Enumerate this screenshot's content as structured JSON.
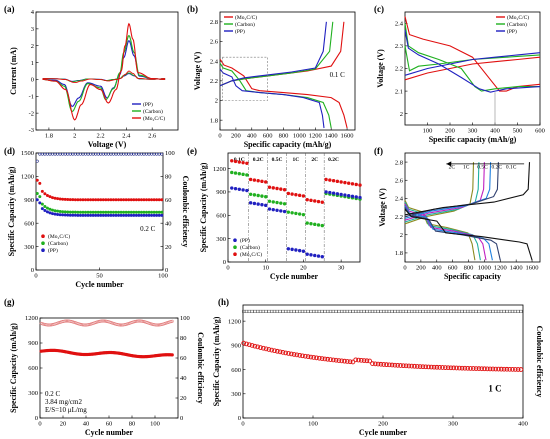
{
  "chart_data": [
    {
      "id": "a",
      "type": "line",
      "panel_label": "(a)",
      "xlabel": "Voltage (V)",
      "ylabel": "Current (mA)",
      "xlim": [
        1.7,
        2.8
      ],
      "ylim": [
        -3,
        4
      ],
      "xticks": [
        1.8,
        2.0,
        2.2,
        2.4,
        2.6
      ],
      "yticks": [
        -3,
        -2,
        -1,
        0,
        1,
        2,
        3,
        4
      ],
      "legend": {
        "position": "bottom-right",
        "entries": [
          "(PP)",
          "(Carbon)",
          "(Mo₂C/C)"
        ]
      },
      "series": [
        {
          "name": "(PP)",
          "color": "#2020c0",
          "x": [
            1.75,
            1.85,
            1.92,
            1.98,
            2.03,
            2.1,
            2.2,
            2.25,
            2.3,
            2.35,
            2.38,
            2.42,
            2.46,
            2.5,
            2.6,
            2.7
          ],
          "y": [
            0,
            -0.05,
            -0.3,
            -1.6,
            -1.1,
            -0.2,
            -0.4,
            -1.1,
            -0.5,
            0.3,
            1.3,
            2.3,
            1.4,
            0.2,
            0.05,
            0
          ]
        },
        {
          "name": "(Carbon)",
          "color": "#20b020",
          "x": [
            1.75,
            1.85,
            1.92,
            1.98,
            2.03,
            2.1,
            2.2,
            2.24,
            2.3,
            2.35,
            2.38,
            2.42,
            2.46,
            2.5,
            2.6,
            2.7
          ],
          "y": [
            0,
            -0.1,
            -0.4,
            -1.9,
            -1.3,
            -0.25,
            -0.5,
            -1.2,
            -0.55,
            0.4,
            1.6,
            2.6,
            1.6,
            0.25,
            0.05,
            0
          ]
        },
        {
          "name": "(Mo₂C/C)",
          "color": "#e01010",
          "x": [
            1.75,
            1.85,
            1.93,
            2.0,
            2.05,
            2.12,
            2.2,
            2.26,
            2.32,
            2.36,
            2.39,
            2.42,
            2.45,
            2.49,
            2.6,
            2.7
          ],
          "y": [
            0,
            -0.1,
            -0.6,
            -2.4,
            -1.5,
            -0.3,
            -0.6,
            -1.4,
            -0.6,
            0.5,
            2.0,
            3.3,
            2.4,
            0.4,
            0.05,
            0
          ]
        }
      ]
    },
    {
      "id": "b",
      "type": "line",
      "panel_label": "(b)",
      "xlabel": "Specific capacity (mAh/g)",
      "ylabel": "Voltage (V)",
      "xlim": [
        0,
        1700
      ],
      "ylim": [
        1.7,
        2.9
      ],
      "xticks": [
        0,
        200,
        400,
        600,
        800,
        1000,
        1200,
        1400,
        1600
      ],
      "yticks": [
        1.8,
        2.0,
        2.2,
        2.4,
        2.6,
        2.8
      ],
      "legend": {
        "position": "top-left",
        "entries": [
          "(Mo₂C/C)",
          "(Carbon)",
          "(PP)"
        ]
      },
      "annotation": "0.1 C",
      "series": [
        {
          "name": "(Mo₂C/C)",
          "color": "#e01010",
          "discharge": {
            "x": [
              0,
              50,
              150,
              300,
              400,
              500,
              800,
              1100,
              1400,
              1500,
              1560,
              1600
            ],
            "y": [
              2.42,
              2.36,
              2.33,
              2.25,
              2.12,
              2.1,
              2.08,
              2.06,
              2.03,
              1.98,
              1.85,
              1.72
            ]
          },
          "charge": {
            "x": [
              0,
              150,
              300,
              500,
              800,
              1100,
              1400,
              1520,
              1560
            ],
            "y": [
              2.15,
              2.2,
              2.22,
              2.24,
              2.27,
              2.3,
              2.35,
              2.5,
              2.8
            ]
          }
        },
        {
          "name": "(Carbon)",
          "color": "#20b020",
          "discharge": {
            "x": [
              0,
              40,
              150,
              250,
              330,
              500,
              800,
              1100,
              1300,
              1370,
              1400
            ],
            "y": [
              2.38,
              2.33,
              2.3,
              2.2,
              2.1,
              2.08,
              2.06,
              2.03,
              1.98,
              1.85,
              1.72
            ]
          },
          "charge": {
            "x": [
              0,
              150,
              300,
              600,
              900,
              1200,
              1380,
              1420
            ],
            "y": [
              2.15,
              2.2,
              2.22,
              2.25,
              2.28,
              2.32,
              2.5,
              2.8
            ]
          }
        },
        {
          "name": "(PP)",
          "color": "#2020c0",
          "discharge": {
            "x": [
              0,
              40,
              150,
              200,
              280,
              500,
              800,
              1050,
              1250,
              1290,
              1310
            ],
            "y": [
              2.32,
              2.28,
              2.24,
              2.15,
              2.1,
              2.08,
              2.06,
              2.03,
              1.98,
              1.85,
              1.72
            ]
          },
          "charge": {
            "x": [
              0,
              150,
              300,
              600,
              900,
              1200,
              1300,
              1340
            ],
            "y": [
              2.15,
              2.2,
              2.23,
              2.26,
              2.29,
              2.33,
              2.5,
              2.8
            ]
          }
        }
      ]
    },
    {
      "id": "c",
      "type": "line",
      "panel_label": "(c)",
      "xlabel": "Specific capacity (mAh/g)",
      "ylabel": "Voltage (V)",
      "xlim": [
        0,
        600
      ],
      "ylim": [
        1.95,
        2.45
      ],
      "xticks": [
        100,
        200,
        300,
        400,
        500,
        600
      ],
      "yticks": [
        2.0,
        2.1,
        2.2,
        2.3,
        2.4
      ],
      "legend": {
        "position": "top-right",
        "entries": [
          "(Mo₂C/C)",
          "(Carbon)",
          "(PP)"
        ]
      },
      "series": [
        {
          "name": "(Mo₂C/C)",
          "color": "#e01010",
          "discharge": {
            "x": [
              0,
              20,
              80,
              200,
              300,
              380,
              420,
              450,
              500,
              600
            ],
            "y": [
              2.43,
              2.35,
              2.33,
              2.3,
              2.25,
              2.15,
              2.1,
              2.1,
              2.12,
              2.13
            ]
          },
          "charge": {
            "x": [
              0,
              100,
              200,
              300,
              400,
              500,
              600
            ],
            "y": [
              2.15,
              2.18,
              2.2,
              2.22,
              2.23,
              2.24,
              2.25
            ]
          }
        },
        {
          "name": "(Carbon)",
          "color": "#20b020",
          "discharge": {
            "x": [
              0,
              15,
              60,
              150,
              250,
              310,
              340,
              400,
              500,
              600
            ],
            "y": [
              2.4,
              2.3,
              2.27,
              2.24,
              2.2,
              2.12,
              2.1,
              2.11,
              2.12,
              2.12
            ]
          },
          "charge": {
            "x": [
              0,
              20,
              60,
              150,
              300,
              450,
              600
            ],
            "y": [
              2.3,
              2.19,
              2.21,
              2.22,
              2.24,
              2.25,
              2.26
            ]
          }
        },
        {
          "name": "(PP)",
          "color": "#2020c0",
          "discharge": {
            "x": [
              0,
              15,
              60,
              150,
              250,
              330,
              380,
              400,
              450,
              600
            ],
            "y": [
              2.37,
              2.29,
              2.26,
              2.22,
              2.16,
              2.11,
              2.095,
              2.1,
              2.11,
              2.12
            ]
          },
          "charge": {
            "x": [
              0,
              100,
              200,
              300,
              400,
              500,
              600
            ],
            "y": [
              2.17,
              2.2,
              2.22,
              2.24,
              2.25,
              2.26,
              2.27
            ]
          }
        }
      ]
    },
    {
      "id": "d",
      "type": "scatter",
      "panel_label": "(d)",
      "xlabel": "Cycle number",
      "ylabel": "Specific Capacity (mAh/g)",
      "y2label": "Coulombic efficiency",
      "xlim": [
        0,
        100
      ],
      "ylim": [
        0,
        1500
      ],
      "y2lim": [
        0,
        100
      ],
      "xticks": [
        0,
        50,
        100
      ],
      "yticks": [
        0,
        300,
        600,
        900,
        1200,
        1500
      ],
      "y2ticks": [
        0,
        20,
        40,
        60,
        80,
        100
      ],
      "legend": {
        "position": "bottom-left",
        "entries": [
          "(Mo₂C/C)",
          "(Carbon)",
          "(PP)"
        ]
      },
      "annotation": "0.2 C",
      "series": [
        {
          "name": "(Mo₂C/C)",
          "color": "#e01010",
          "start": 1150,
          "end": 900
        },
        {
          "name": "(Carbon)",
          "color": "#20b020",
          "start": 980,
          "end": 740
        },
        {
          "name": "(PP)",
          "color": "#2020c0",
          "start": 900,
          "end": 700
        }
      ]
    },
    {
      "id": "e",
      "type": "scatter",
      "panel_label": "(e)",
      "xlabel": "Cycle number",
      "ylabel": "Specific Capacity (mAh/g)",
      "xlim": [
        0,
        35
      ],
      "ylim": [
        0,
        1400
      ],
      "xticks": [
        0,
        10,
        20,
        30
      ],
      "yticks": [
        0,
        300,
        600,
        900,
        1200
      ],
      "rates": [
        "0.1C",
        "0.2C",
        "0.5C",
        "1C",
        "2C",
        "0.2C"
      ],
      "legend": {
        "position": "bottom-left",
        "entries": [
          "(PP)",
          "(Carbon)",
          "(Mo₂C/C)"
        ]
      },
      "series": [
        {
          "name": "(Mo₂C/C)",
          "color": "#e01010",
          "levels": [
            1300,
            1060,
            960,
            880,
            800,
            1060
          ]
        },
        {
          "name": "(Carbon)",
          "color": "#20b020",
          "levels": [
            1150,
            870,
            780,
            640,
            500,
            880
          ]
        },
        {
          "name": "(PP)",
          "color": "#2020c0",
          "levels": [
            950,
            760,
            680,
            170,
            100,
            900
          ]
        }
      ]
    },
    {
      "id": "f",
      "type": "line",
      "panel_label": "(f)",
      "xlabel": "Specific capacity",
      "ylabel": "Voltage (V)",
      "xlim": [
        0,
        1700
      ],
      "ylim": [
        1.7,
        2.9
      ],
      "xticks": [
        0,
        200,
        400,
        600,
        800,
        1000,
        1200,
        1400,
        1600
      ],
      "yticks": [
        1.8,
        2.0,
        2.2,
        2.4,
        2.6,
        2.8
      ],
      "arrow_labels": [
        "2C",
        "1C",
        "0.5C",
        "0.2C",
        "0.1C"
      ],
      "capacities": [
        880,
        950,
        1020,
        1100,
        1200,
        1600
      ],
      "colors": [
        "#8a8a20",
        "#20b0a0",
        "#c020c0",
        "#2080e0",
        "#304070",
        "#101010"
      ]
    },
    {
      "id": "g",
      "type": "scatter",
      "panel_label": "(g)",
      "xlabel": "Cycle number",
      "ylabel": "Specific Capacity (mAh/g)",
      "y2label": "Coulombic efficiency",
      "xlim": [
        0,
        120
      ],
      "ylim": [
        0,
        1200
      ],
      "y2lim": [
        0,
        100
      ],
      "xticks": [
        0,
        20,
        40,
        60,
        80,
        100
      ],
      "yticks": [
        0,
        300,
        600,
        900,
        1200
      ],
      "y2ticks": [
        0,
        20,
        40,
        60,
        80,
        100
      ],
      "annotations": [
        "0.2 C",
        "3.84 mg/cm2",
        "E/S=10 μL/mg"
      ],
      "capacity": {
        "start": 800,
        "end": 740
      },
      "efficiency": 95
    },
    {
      "id": "h",
      "type": "scatter",
      "panel_label": "(h)",
      "xlabel": "Cycle number",
      "ylabel": "Specific Capacity (mAh/g)",
      "y2label": "Coulombic efficiency",
      "xlim": [
        0,
        400
      ],
      "ylim": [
        0,
        1400
      ],
      "xticks": [
        0,
        100,
        200,
        300,
        400
      ],
      "yticks": [
        0,
        300,
        600,
        900,
        1200
      ],
      "annotation": "1 C",
      "capacity": {
        "start": 930,
        "end": 580
      },
      "efficiency_level": 1320
    }
  ]
}
